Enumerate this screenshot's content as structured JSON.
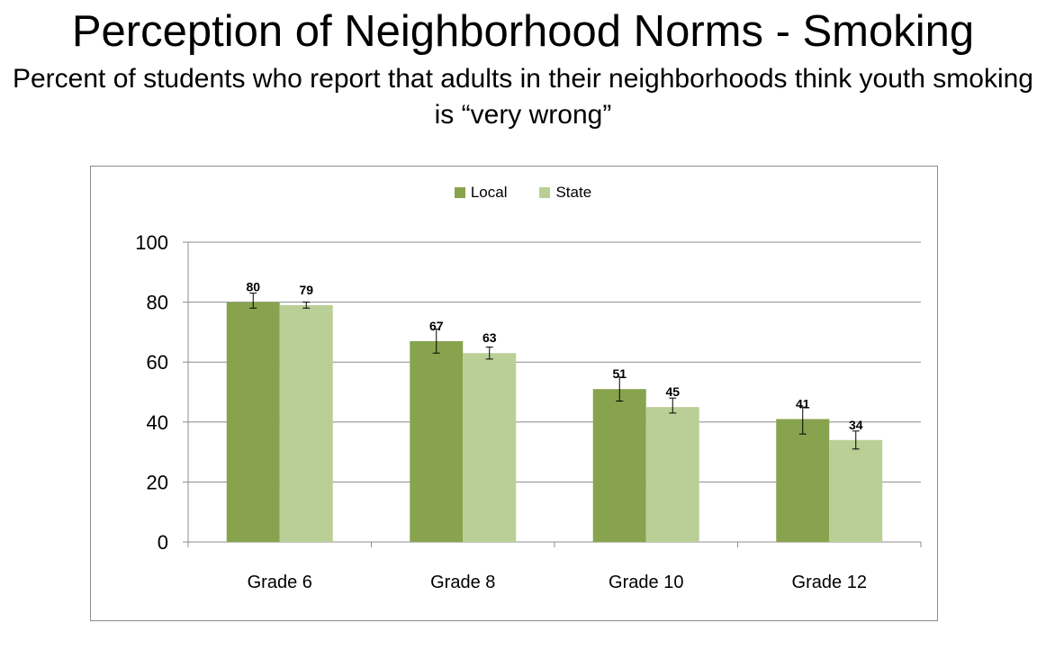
{
  "colors": {
    "local": "#88a34e",
    "state": "#bacf96",
    "grid": "#8c8c8c"
  },
  "chart_data": {
    "type": "bar",
    "title": "Perception of Neighborhood Norms - Smoking",
    "subtitle": "Percent of students who report that adults in their neighborhoods think youth smoking is “very wrong”",
    "categories": [
      "Grade 6",
      "Grade 8",
      "Grade 10",
      "Grade 12"
    ],
    "series": [
      {
        "name": "Local",
        "values": [
          80,
          67,
          51,
          41
        ],
        "error": [
          [
            78,
            83
          ],
          [
            63,
            71
          ],
          [
            47,
            55
          ],
          [
            36,
            45
          ]
        ]
      },
      {
        "name": "State",
        "values": [
          79,
          63,
          45,
          34
        ],
        "error": [
          [
            78,
            80
          ],
          [
            61,
            65
          ],
          [
            43,
            48
          ],
          [
            31,
            37
          ]
        ]
      }
    ],
    "yticks": [
      0,
      20,
      40,
      60,
      80,
      100
    ],
    "ylim": [
      0,
      100
    ],
    "legend_position": "top-center",
    "grid": true
  }
}
